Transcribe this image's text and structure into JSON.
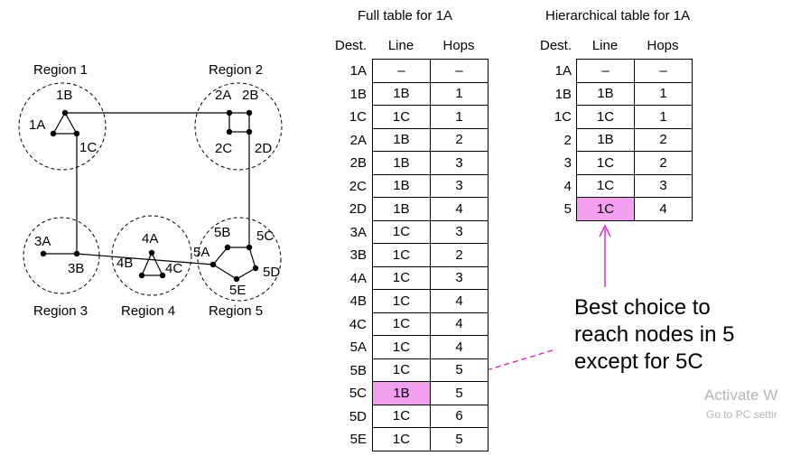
{
  "network": {
    "regions": [
      "Region 1",
      "Region 2",
      "Region 3",
      "Region 4",
      "Region 5"
    ],
    "nodes": [
      "1A",
      "1B",
      "1C",
      "2A",
      "2B",
      "2C",
      "2D",
      "3A",
      "3B",
      "4A",
      "4B",
      "4C",
      "5A",
      "5B",
      "5C",
      "5D",
      "5E"
    ]
  },
  "full_table": {
    "title": "Full table for 1A",
    "headers": [
      "Dest.",
      "Line",
      "Hops"
    ],
    "rows": [
      {
        "dest": "1A",
        "line": "–",
        "hops": "–"
      },
      {
        "dest": "1B",
        "line": "1B",
        "hops": "1"
      },
      {
        "dest": "1C",
        "line": "1C",
        "hops": "1"
      },
      {
        "dest": "2A",
        "line": "1B",
        "hops": "2"
      },
      {
        "dest": "2B",
        "line": "1B",
        "hops": "3"
      },
      {
        "dest": "2C",
        "line": "1B",
        "hops": "3"
      },
      {
        "dest": "2D",
        "line": "1B",
        "hops": "4"
      },
      {
        "dest": "3A",
        "line": "1C",
        "hops": "3"
      },
      {
        "dest": "3B",
        "line": "1C",
        "hops": "2"
      },
      {
        "dest": "4A",
        "line": "1C",
        "hops": "3"
      },
      {
        "dest": "4B",
        "line": "1C",
        "hops": "4"
      },
      {
        "dest": "4C",
        "line": "1C",
        "hops": "4"
      },
      {
        "dest": "5A",
        "line": "1C",
        "hops": "4"
      },
      {
        "dest": "5B",
        "line": "1C",
        "hops": "5"
      },
      {
        "dest": "5C",
        "line": "1B",
        "hops": "5"
      },
      {
        "dest": "5D",
        "line": "1C",
        "hops": "6"
      },
      {
        "dest": "5E",
        "line": "1C",
        "hops": "5"
      }
    ]
  },
  "hier_table": {
    "title": "Hierarchical table for 1A",
    "headers": [
      "Dest.",
      "Line",
      "Hops"
    ],
    "rows": [
      {
        "dest": "1A",
        "line": "–",
        "hops": "–"
      },
      {
        "dest": "1B",
        "line": "1B",
        "hops": "1"
      },
      {
        "dest": "1C",
        "line": "1C",
        "hops": "1"
      },
      {
        "dest": "2",
        "line": "1B",
        "hops": "2"
      },
      {
        "dest": "3",
        "line": "1C",
        "hops": "2"
      },
      {
        "dest": "4",
        "line": "1C",
        "hops": "3"
      },
      {
        "dest": "5",
        "line": "1C",
        "hops": "4"
      }
    ]
  },
  "note": {
    "line1": "Best choice to",
    "line2": "reach nodes in 5",
    "line3": "except for 5C"
  },
  "watermark": {
    "line1": "Activate W",
    "line2": "Go to PC settir"
  },
  "colors": {
    "highlight": "#f39ff0",
    "arrow": "#e020c8"
  }
}
